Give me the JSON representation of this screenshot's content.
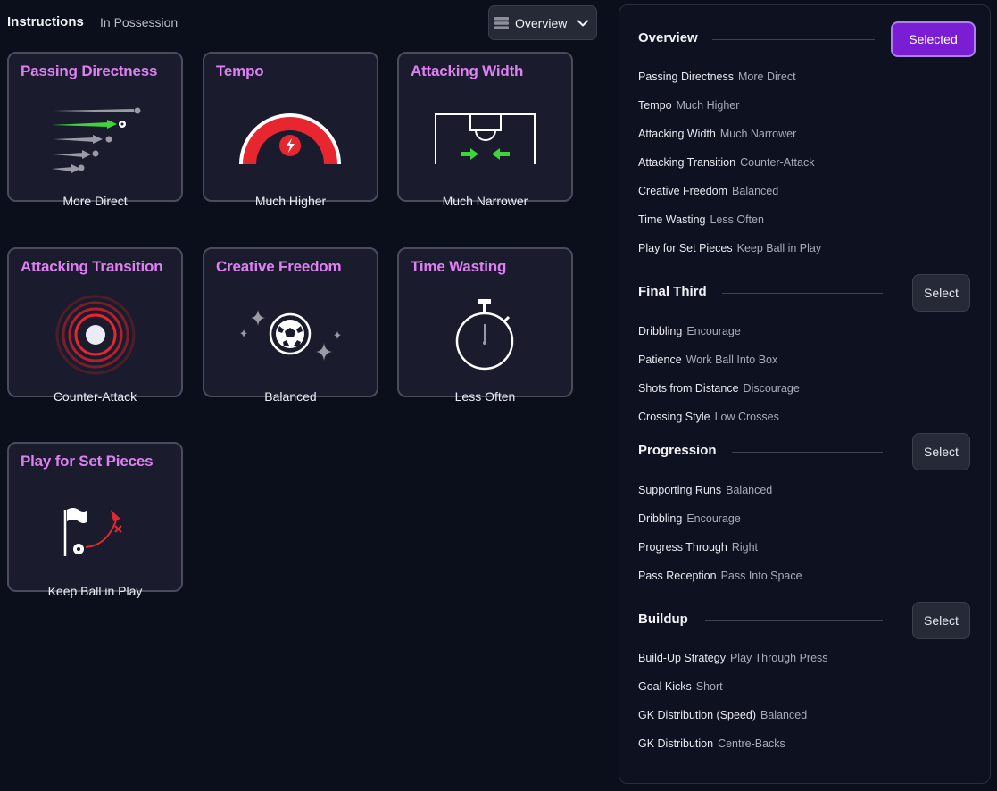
{
  "header": {
    "title": "Instructions",
    "subtitle": "In Possession",
    "view_label": "Overview"
  },
  "cards": [
    {
      "title": "Passing Directness",
      "value": "More Direct"
    },
    {
      "title": "Tempo",
      "value": "Much Higher"
    },
    {
      "title": "Attacking Width",
      "value": "Much Narrower"
    },
    {
      "title": "Attacking Transition",
      "value": "Counter-Attack"
    },
    {
      "title": "Creative Freedom",
      "value": "Balanced"
    },
    {
      "title": "Time Wasting",
      "value": "Less Often"
    },
    {
      "title": "Play for Set Pieces",
      "value": "Keep Ball in Play"
    }
  ],
  "panel": {
    "sections": [
      {
        "title": "Overview",
        "button": "Selected",
        "items": [
          {
            "key": "Passing Directness",
            "value": "More Direct"
          },
          {
            "key": "Tempo",
            "value": "Much Higher"
          },
          {
            "key": "Attacking Width",
            "value": "Much Narrower"
          },
          {
            "key": "Attacking Transition",
            "value": "Counter-Attack"
          },
          {
            "key": "Creative Freedom",
            "value": "Balanced"
          },
          {
            "key": "Time Wasting",
            "value": "Less Often"
          },
          {
            "key": "Play for Set Pieces",
            "value": "Keep Ball in Play"
          }
        ]
      },
      {
        "title": "Final Third",
        "button": "Select",
        "items": [
          {
            "key": "Dribbling",
            "value": "Encourage"
          },
          {
            "key": "Patience",
            "value": "Work Ball Into Box"
          },
          {
            "key": "Shots from Distance",
            "value": "Discourage"
          },
          {
            "key": "Crossing Style",
            "value": "Low Crosses"
          }
        ]
      },
      {
        "title": "Progression",
        "button": "Select",
        "items": [
          {
            "key": "Supporting Runs",
            "value": "Balanced"
          },
          {
            "key": "Dribbling",
            "value": "Encourage"
          },
          {
            "key": "Progress Through",
            "value": "Right"
          },
          {
            "key": "Pass Reception",
            "value": "Pass Into Space"
          }
        ]
      },
      {
        "title": "Buildup",
        "button": "Select",
        "items": [
          {
            "key": "Build-Up Strategy",
            "value": "Play Through Press"
          },
          {
            "key": "Goal Kicks",
            "value": "Short"
          },
          {
            "key": "GK Distribution (Speed)",
            "value": "Balanced"
          },
          {
            "key": "GK Distribution",
            "value": "Centre-Backs"
          }
        ]
      }
    ]
  },
  "colors": {
    "accent": "#de80f2",
    "selected_button": "#7a1ed6",
    "tempo_red": "#e8262f",
    "arrow_green": "#3fd43a"
  },
  "icons": {
    "view_select": "lines-icon",
    "dropdown": "chevron-down-icon",
    "passing_directness": "ball-arrows-icon",
    "tempo": "gauge-lightning-icon",
    "attacking_width": "pitch-narrow-icon",
    "attacking_transition": "target-rings-icon",
    "creative_freedom": "ball-sparkles-icon",
    "time_wasting": "stopwatch-icon",
    "play_for_set_pieces": "corner-flag-icon"
  }
}
